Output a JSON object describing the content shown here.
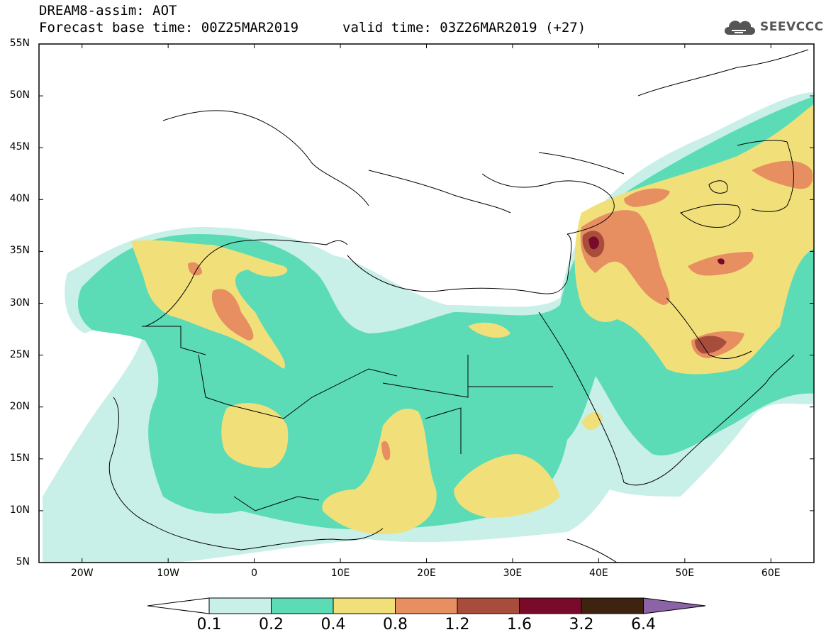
{
  "header": {
    "title": "DREAM8-assim: AOT",
    "base_time": "Forecast base time: 00Z25MAR2019",
    "valid_time": "valid time: 03Z26MAR2019 (+27)"
  },
  "logo": {
    "text": "SEEVCCC",
    "icon": "cloud-icon"
  },
  "map": {
    "lon_range": [
      -25,
      65
    ],
    "lat_range": [
      5,
      55
    ],
    "lat_ticks": [
      "55N",
      "50N",
      "45N",
      "40N",
      "35N",
      "30N",
      "25N",
      "20N",
      "15N",
      "10N",
      "5N"
    ],
    "lon_ticks": [
      "20W",
      "10W",
      "0",
      "10E",
      "20E",
      "30E",
      "40E",
      "50E",
      "60E"
    ]
  },
  "legend": {
    "labels": [
      "0.1",
      "0.2",
      "0.4",
      "0.8",
      "1.2",
      "1.6",
      "3.2",
      "6.4"
    ],
    "colors": [
      "#c8efe8",
      "#5bdcb6",
      "#f1e07a",
      "#e88f62",
      "#a84d3c",
      "#7a0a2a",
      "#3e2410",
      "#8c63a6"
    ]
  }
}
